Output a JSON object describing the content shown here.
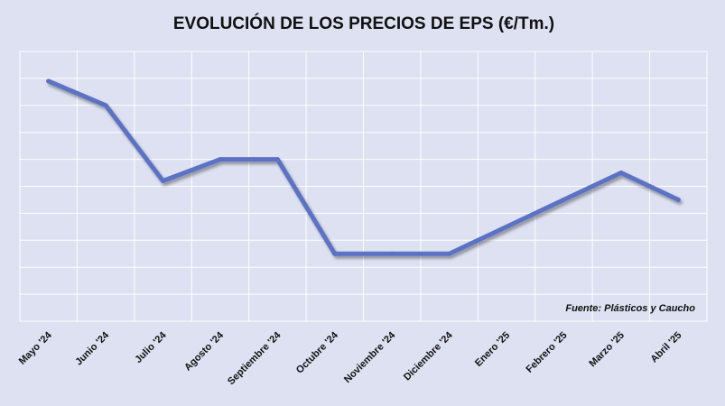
{
  "chart_data": {
    "type": "line",
    "title": "EVOLUCIÓN DE LOS PRECIOS DE EPS (€/Tm.)",
    "source": "Fuente: Plásticos y Caucho",
    "xlabel": "",
    "ylabel": "",
    "categories": [
      "Mayo '24",
      "Junio '24",
      "Julio '24",
      "Agosto '24",
      "Septiembre '24",
      "Octubre '24",
      "Noviembre '24",
      "Diciembre '24",
      "Enero '25",
      "Febrero '25",
      "Marzo '25",
      "Abril '25"
    ],
    "series": [
      {
        "values": [
          8.9,
          8.0,
          5.2,
          6.0,
          6.0,
          2.5,
          2.5,
          2.5,
          3.5,
          4.5,
          5.5,
          4.5
        ]
      }
    ],
    "ylim": [
      0,
      10
    ],
    "y_tick_labels_shown": false,
    "grid": true,
    "legend": "none",
    "line_color": "#5b72c4",
    "background_color": "#dde1f1"
  }
}
